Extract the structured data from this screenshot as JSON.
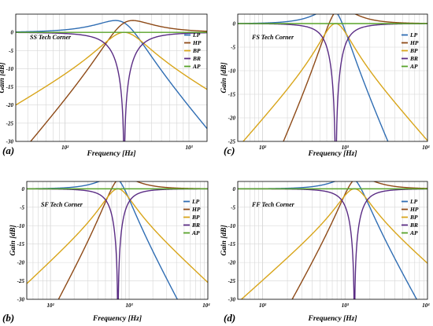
{
  "colors": {
    "LP": "#2f6db3",
    "HP": "#8e4a17",
    "BP": "#d8a51a",
    "BR": "#5a2c84",
    "AP": "#58a32a",
    "grid": "#d6d6d6",
    "frame": "#000000"
  },
  "chart_data": [
    {
      "type": "line",
      "panel_label": "(a)",
      "title": "SS Tech Corner",
      "xlabel": "Frequency [Hz]",
      "ylabel": "Gain [dB]",
      "xscale": "log",
      "xlim": [
        40,
        1400
      ],
      "ylim": [
        -30,
        5
      ],
      "x_ticks": [
        {
          "value": 100,
          "label": "10²"
        },
        {
          "value": 1000,
          "label": "10³"
        }
      ],
      "y_ticks": [
        {
          "value": 0,
          "label": "0"
        },
        {
          "value": -5,
          "label": "-5"
        },
        {
          "value": -10,
          "label": "-10"
        },
        {
          "value": -15,
          "label": "-15"
        },
        {
          "value": -20,
          "label": "-20"
        },
        {
          "value": -25,
          "label": "-25"
        },
        {
          "value": -30,
          "label": "-30"
        }
      ],
      "grid": true,
      "legend_position": "top-right",
      "filter": {
        "f0": 300,
        "Q": 1.35
      },
      "series": [
        {
          "name": "LP",
          "type": "LP"
        },
        {
          "name": "HP",
          "type": "HP"
        },
        {
          "name": "BP",
          "type": "BP"
        },
        {
          "name": "BR",
          "type": "BR"
        },
        {
          "name": "AP",
          "type": "AP"
        }
      ]
    },
    {
      "type": "line",
      "panel_label": "(c)",
      "title": "FS Tech Corner",
      "xlabel": "Frequency [Hz]",
      "ylabel": "Gain [dB]",
      "xscale": "log",
      "xlim": [
        50,
        10000
      ],
      "ylim": [
        -25,
        2
      ],
      "x_ticks": [
        {
          "value": 100,
          "label": "10²"
        },
        {
          "value": 1000,
          "label": "10³"
        },
        {
          "value": 10000,
          "label": "10⁴"
        }
      ],
      "y_ticks": [
        {
          "value": 0,
          "label": "0"
        },
        {
          "value": -5,
          "label": "-5"
        },
        {
          "value": -10,
          "label": "-10"
        },
        {
          "value": -15,
          "label": "-15"
        },
        {
          "value": -20,
          "label": "-20"
        },
        {
          "value": -25,
          "label": "-25"
        }
      ],
      "grid": true,
      "legend_position": "top-right",
      "filter": {
        "f0": 770,
        "Q": 1.35
      },
      "series": [
        {
          "name": "LP",
          "type": "LP"
        },
        {
          "name": "HP",
          "type": "HP"
        },
        {
          "name": "BP",
          "type": "BP"
        },
        {
          "name": "BR",
          "type": "BR"
        },
        {
          "name": "AP",
          "type": "AP"
        }
      ]
    },
    {
      "type": "line",
      "panel_label": "(b)",
      "title": "SF Tech Corner",
      "xlabel": "Frequency [Hz]",
      "ylabel": "Gain [dB]",
      "xscale": "log",
      "xlim": [
        50,
        10000
      ],
      "ylim": [
        -30,
        2
      ],
      "x_ticks": [
        {
          "value": 100,
          "label": "10²"
        },
        {
          "value": 1000,
          "label": "10³"
        },
        {
          "value": 10000,
          "label": "10⁴"
        }
      ],
      "y_ticks": [
        {
          "value": 0,
          "label": "0"
        },
        {
          "value": -5,
          "label": "-5"
        },
        {
          "value": -10,
          "label": "-10"
        },
        {
          "value": -15,
          "label": "-15"
        },
        {
          "value": -20,
          "label": "-20"
        },
        {
          "value": -25,
          "label": "-25"
        },
        {
          "value": -30,
          "label": "-30"
        }
      ],
      "grid": true,
      "legend_position": "top-right",
      "filter": {
        "f0": 720,
        "Q": 1.35
      },
      "series": [
        {
          "name": "LP",
          "type": "LP"
        },
        {
          "name": "HP",
          "type": "HP"
        },
        {
          "name": "BP",
          "type": "BP"
        },
        {
          "name": "BR",
          "type": "BR"
        },
        {
          "name": "AP",
          "type": "AP"
        }
      ]
    },
    {
      "type": "line",
      "panel_label": "(d)",
      "title": "FF Tech Corner",
      "xlabel": "Frequency [Hz]",
      "ylabel": "Gain [dB]",
      "xscale": "log",
      "xlim": [
        50,
        10000
      ],
      "ylim": [
        -30,
        2
      ],
      "x_ticks": [
        {
          "value": 100,
          "label": "10²"
        },
        {
          "value": 1000,
          "label": "10³"
        },
        {
          "value": 10000,
          "label": "10⁴"
        }
      ],
      "y_ticks": [
        {
          "value": 0,
          "label": "0"
        },
        {
          "value": -5,
          "label": "-5"
        },
        {
          "value": -10,
          "label": "-10"
        },
        {
          "value": -15,
          "label": "-15"
        },
        {
          "value": -20,
          "label": "-20"
        },
        {
          "value": -25,
          "label": "-25"
        },
        {
          "value": -30,
          "label": "-30"
        }
      ],
      "grid": true,
      "legend_position": "top-right",
      "filter": {
        "f0": 1300,
        "Q": 1.35
      },
      "series": [
        {
          "name": "LP",
          "type": "LP"
        },
        {
          "name": "HP",
          "type": "HP"
        },
        {
          "name": "BP",
          "type": "BP"
        },
        {
          "name": "BR",
          "type": "BR"
        },
        {
          "name": "AP",
          "type": "AP"
        }
      ]
    }
  ]
}
